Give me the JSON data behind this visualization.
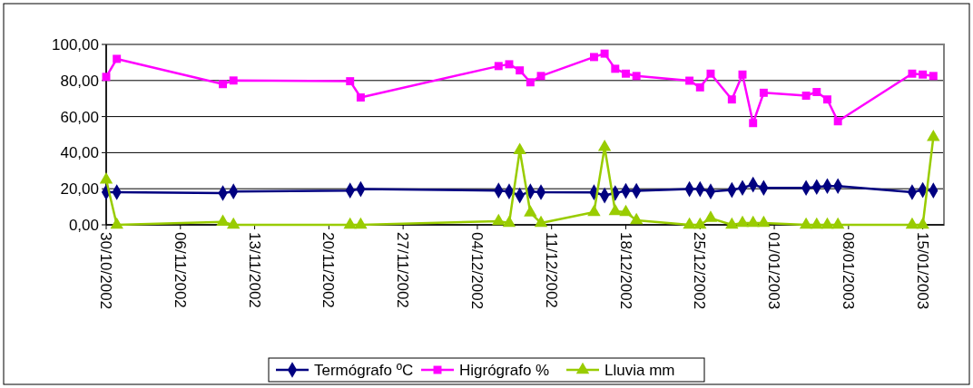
{
  "chart_data": {
    "type": "line",
    "x": [
      "2002-10-30",
      "2002-10-31",
      "2002-11-10",
      "2002-11-11",
      "2002-11-22",
      "2002-11-23",
      "2002-12-06",
      "2002-12-07",
      "2002-12-08",
      "2002-12-09",
      "2002-12-10",
      "2002-12-15",
      "2002-12-16",
      "2002-12-17",
      "2002-12-18",
      "2002-12-19",
      "2002-12-24",
      "2002-12-25",
      "2002-12-26",
      "2002-12-28",
      "2002-12-29",
      "2002-12-30",
      "2002-12-31",
      "2003-01-04",
      "2003-01-05",
      "2003-01-06",
      "2003-01-07",
      "2003-01-14",
      "2003-01-15",
      "2003-01-16"
    ],
    "series": [
      {
        "name": "Termógrafo ºC",
        "color": "#000080",
        "marker": "diamond",
        "values": [
          18.1,
          18.1,
          17.6,
          18.5,
          19,
          19.8,
          19,
          18.5,
          16.3,
          18.5,
          18.1,
          18,
          16.3,
          17.6,
          18.8,
          18.8,
          19.8,
          19.8,
          18.5,
          19.3,
          20.5,
          22.3,
          20.5,
          20.5,
          21,
          21.5,
          21.5,
          18.1,
          19.3,
          19
        ]
      },
      {
        "name": "Higrógrafo %",
        "color": "#ff00ff",
        "marker": "square",
        "values": [
          82,
          92,
          78,
          80,
          79.6,
          70.6,
          88,
          89,
          85.6,
          79,
          82.5,
          93,
          94.9,
          86.5,
          83.8,
          82.5,
          79.9,
          76.2,
          83.8,
          69.5,
          83.3,
          56.4,
          73.2,
          71.6,
          73.6,
          69.5,
          57.4,
          83.8,
          83.3,
          82.5
        ]
      },
      {
        "name": "Lluvia mm",
        "color": "#99cc00",
        "marker": "triangle",
        "values": [
          25,
          0,
          1.6,
          0,
          0,
          0,
          2,
          1,
          41.3,
          6.7,
          1,
          7,
          43,
          7.5,
          7,
          2.5,
          0,
          0,
          3.7,
          0,
          1,
          1,
          1,
          0,
          0,
          0,
          0,
          0,
          0,
          48.6
        ]
      }
    ],
    "xlim": [
      "2002-10-30",
      "2003-01-17"
    ],
    "xticks": [
      {
        "value": "2002-10-30",
        "label": "30/10/2002"
      },
      {
        "value": "2002-11-06",
        "label": "06/11/2002"
      },
      {
        "value": "2002-11-13",
        "label": "13/11/2002"
      },
      {
        "value": "2002-11-20",
        "label": "20/11/2002"
      },
      {
        "value": "2002-11-27",
        "label": "27/11/2002"
      },
      {
        "value": "2002-12-04",
        "label": "04/12/2002"
      },
      {
        "value": "2002-12-11",
        "label": "11/12/2002"
      },
      {
        "value": "2002-12-18",
        "label": "18/12/2002"
      },
      {
        "value": "2002-12-25",
        "label": "25/12/2002"
      },
      {
        "value": "2003-01-01",
        "label": "01/01/2003"
      },
      {
        "value": "2003-01-08",
        "label": "08/01/2003"
      },
      {
        "value": "2003-01-15",
        "label": "15/01/2003"
      }
    ],
    "ylim": [
      0,
      100
    ],
    "yticks": [
      {
        "value": 0,
        "label": "0,00"
      },
      {
        "value": 20,
        "label": "20,00"
      },
      {
        "value": 40,
        "label": "40,00"
      },
      {
        "value": 60,
        "label": "60,00"
      },
      {
        "value": 80,
        "label": "80,00"
      },
      {
        "value": 100,
        "label": "100,00"
      }
    ],
    "grid": "y",
    "legend": "bottom",
    "line_style": "solid"
  }
}
